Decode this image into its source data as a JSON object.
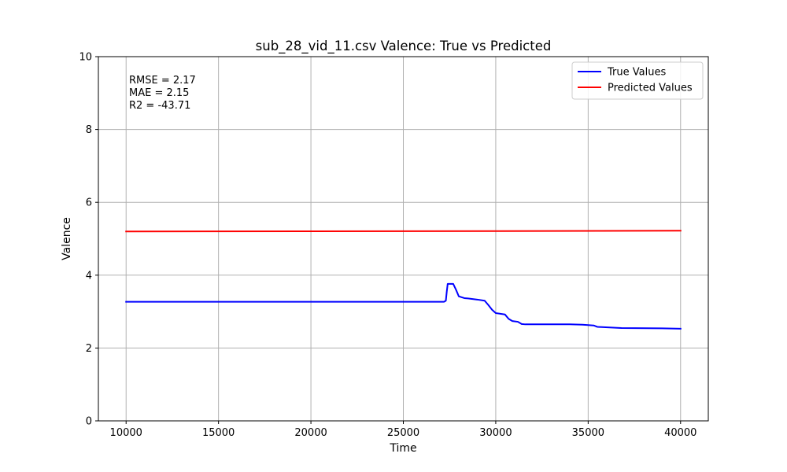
{
  "chart_data": {
    "type": "line",
    "title": "sub_28_vid_11.csv Valence: True vs Predicted",
    "xlabel": "Time",
    "ylabel": "Valence",
    "xlim": [
      8500,
      41500
    ],
    "ylim": [
      0,
      10
    ],
    "xticks": [
      10000,
      15000,
      20000,
      25000,
      30000,
      35000,
      40000
    ],
    "yticks": [
      0,
      2,
      4,
      6,
      8,
      10
    ],
    "grid": true,
    "legend_position": "top-right",
    "annotations": [
      "RMSE = 2.17",
      "MAE = 2.15",
      "R2 = -43.71"
    ],
    "series": [
      {
        "name": "True Values",
        "color": "#0000ff",
        "x": [
          10000,
          27200,
          27300,
          27350,
          27400,
          27700,
          27850,
          28000,
          28300,
          28500,
          29000,
          29400,
          29600,
          29800,
          30000,
          30500,
          30700,
          30900,
          31200,
          31400,
          31600,
          32000,
          34000,
          34700,
          35300,
          35500,
          36800,
          39000,
          40000
        ],
        "y": [
          3.27,
          3.27,
          3.3,
          3.55,
          3.76,
          3.76,
          3.6,
          3.42,
          3.37,
          3.36,
          3.33,
          3.3,
          3.18,
          3.05,
          2.96,
          2.92,
          2.8,
          2.74,
          2.72,
          2.66,
          2.65,
          2.65,
          2.65,
          2.64,
          2.62,
          2.58,
          2.55,
          2.54,
          2.53
        ]
      },
      {
        "name": "Predicted Values",
        "color": "#ff0000",
        "x": [
          10000,
          20000,
          30000,
          40000
        ],
        "y": [
          5.2,
          5.205,
          5.21,
          5.22
        ]
      }
    ]
  }
}
